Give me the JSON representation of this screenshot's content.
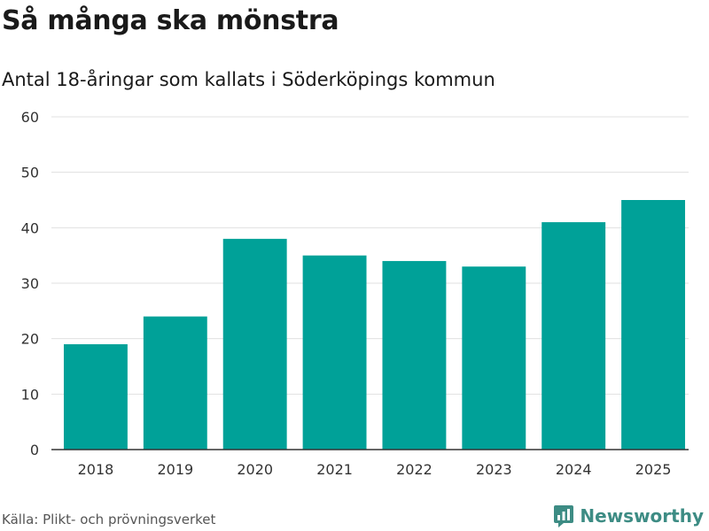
{
  "chart_data": {
    "type": "bar",
    "title": "Så många ska mönstra",
    "subtitle": "Antal 18-åringar som kallats i Söderköpings kommun",
    "categories": [
      "2018",
      "2019",
      "2020",
      "2021",
      "2022",
      "2023",
      "2024",
      "2025"
    ],
    "values": [
      19,
      24,
      38,
      35,
      34,
      33,
      41,
      45
    ],
    "xlabel": "",
    "ylabel": "",
    "ylim": [
      0,
      60
    ],
    "yticks": [
      0,
      10,
      20,
      30,
      40,
      50,
      60
    ],
    "grid": true,
    "bar_color": "#00a198"
  },
  "footer": {
    "source": "Källa: Plikt- och prövningsverket",
    "brand": "Newsworthy",
    "brand_color": "#3d8c84"
  }
}
